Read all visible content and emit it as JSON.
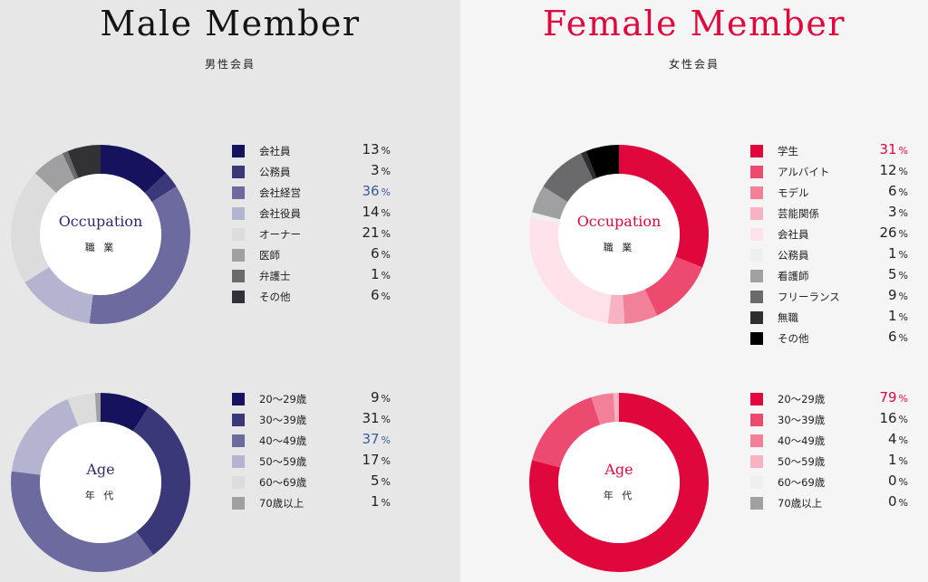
{
  "male": {
    "title": "Male Member",
    "subtitle": "男性会員",
    "highlight_color": "#3a5a9a"
  },
  "female": {
    "title": "Female Member",
    "subtitle": "女性会員",
    "highlight_color": "#e0073d"
  },
  "chart_data": [
    {
      "id": "male-occupation",
      "type": "pie",
      "center_label": "Occupation",
      "center_sublabel": "職 業",
      "unit": "%",
      "highlight_index": 2,
      "slices": [
        {
          "name": "会社員",
          "value": 13,
          "color": "#15125e"
        },
        {
          "name": "公務員",
          "value": 3,
          "color": "#3b387a"
        },
        {
          "name": "会社経営",
          "value": 36,
          "color": "#6d6aa0"
        },
        {
          "name": "会社役員",
          "value": 14,
          "color": "#b4b3d0"
        },
        {
          "name": "オーナー",
          "value": 21,
          "color": "#dcdcdc"
        },
        {
          "name": "医師",
          "value": 6,
          "color": "#a0a0a2"
        },
        {
          "name": "弁護士",
          "value": 1,
          "color": "#6a6a6c"
        },
        {
          "name": "その他",
          "value": 6,
          "color": "#313136"
        }
      ]
    },
    {
      "id": "male-age",
      "type": "pie",
      "center_label": "Age",
      "center_sublabel": "年 代",
      "unit": "%",
      "highlight_index": 2,
      "slices": [
        {
          "name": "20〜29歳",
          "value": 9,
          "color": "#15125e"
        },
        {
          "name": "30〜39歳",
          "value": 31,
          "color": "#3b387a"
        },
        {
          "name": "40〜49歳",
          "value": 37,
          "color": "#6d6aa0"
        },
        {
          "name": "50〜59歳",
          "value": 17,
          "color": "#b4b3d0"
        },
        {
          "name": "60〜69歳",
          "value": 5,
          "color": "#dcdcdc"
        },
        {
          "name": "70歳以上",
          "value": 1,
          "color": "#a0a0a2"
        }
      ]
    },
    {
      "id": "female-occupation",
      "type": "pie",
      "center_label": "Occupation",
      "center_sublabel": "職 業",
      "unit": "%",
      "highlight_index": 0,
      "slices": [
        {
          "name": "学生",
          "value": 31,
          "color": "#e0073d"
        },
        {
          "name": "アルバイト",
          "value": 12,
          "color": "#ed4a70"
        },
        {
          "name": "モデル",
          "value": 6,
          "color": "#f38099"
        },
        {
          "name": "芸能関係",
          "value": 3,
          "color": "#f7b3c2"
        },
        {
          "name": "会社員",
          "value": 26,
          "color": "#fde3e9"
        },
        {
          "name": "公務員",
          "value": 1,
          "color": "#efefef"
        },
        {
          "name": "看護師",
          "value": 5,
          "color": "#a0a0a3"
        },
        {
          "name": "フリーランス",
          "value": 9,
          "color": "#6a6a6d"
        },
        {
          "name": "無職",
          "value": 1,
          "color": "#2f2f33"
        },
        {
          "name": "その他",
          "value": 6,
          "color": "#000000"
        }
      ]
    },
    {
      "id": "female-age",
      "type": "pie",
      "center_label": "Age",
      "center_sublabel": "年 代",
      "unit": "%",
      "highlight_index": 0,
      "slices": [
        {
          "name": "20〜29歳",
          "value": 79,
          "color": "#e0073d"
        },
        {
          "name": "30〜39歳",
          "value": 16,
          "color": "#ed4a70"
        },
        {
          "name": "40〜49歳",
          "value": 4,
          "color": "#f38099"
        },
        {
          "name": "50〜59歳",
          "value": 1,
          "color": "#f7b3c2"
        },
        {
          "name": "60〜69歳",
          "value": 0,
          "color": "#efefef"
        },
        {
          "name": "70歳以上",
          "value": 0,
          "color": "#a0a0a3"
        }
      ]
    }
  ]
}
